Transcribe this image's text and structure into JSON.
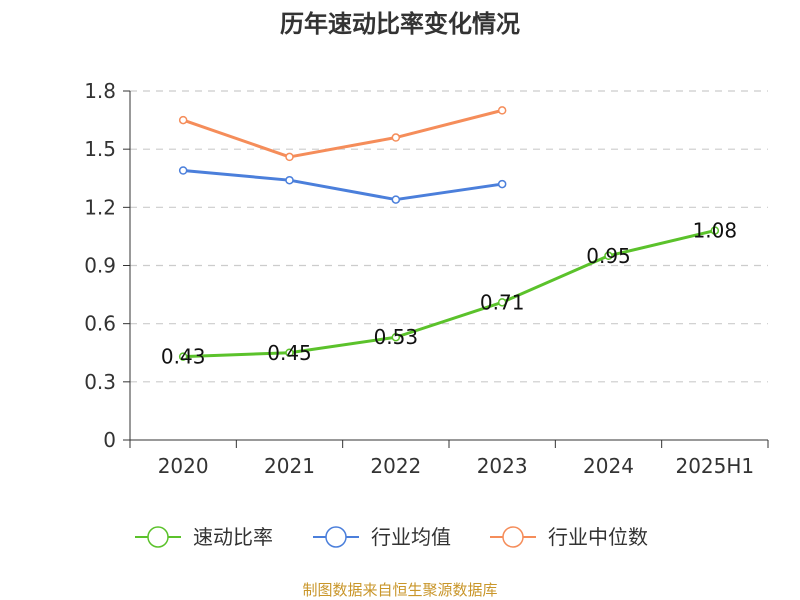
{
  "chart_data": {
    "type": "line",
    "title": "历年速动比率变化情况",
    "categories": [
      "2020",
      "2021",
      "2022",
      "2023",
      "2024",
      "2025H1"
    ],
    "y_ticks": [
      "0",
      "0.3",
      "0.6",
      "0.9",
      "1.2",
      "1.5",
      "1.8"
    ],
    "ylim": [
      0,
      1.8
    ],
    "grid": true,
    "legend_position": "bottom",
    "series": [
      {
        "name": "速动比率",
        "color": "#5bc22b",
        "values": [
          0.43,
          0.45,
          0.53,
          0.71,
          0.95,
          1.08
        ],
        "labels": [
          "0.43",
          "0.45",
          "0.53",
          "0.71",
          "0.95",
          "1.08"
        ]
      },
      {
        "name": "行业均值",
        "color": "#4b7fdb",
        "values": [
          1.39,
          1.34,
          1.24,
          1.32,
          null,
          null
        ]
      },
      {
        "name": "行业中位数",
        "color": "#f58d5a",
        "values": [
          1.65,
          1.46,
          1.56,
          1.7,
          null,
          null
        ]
      }
    ]
  },
  "source_text": "制图数据来自恒生聚源数据库",
  "source_color": "#c9962a"
}
